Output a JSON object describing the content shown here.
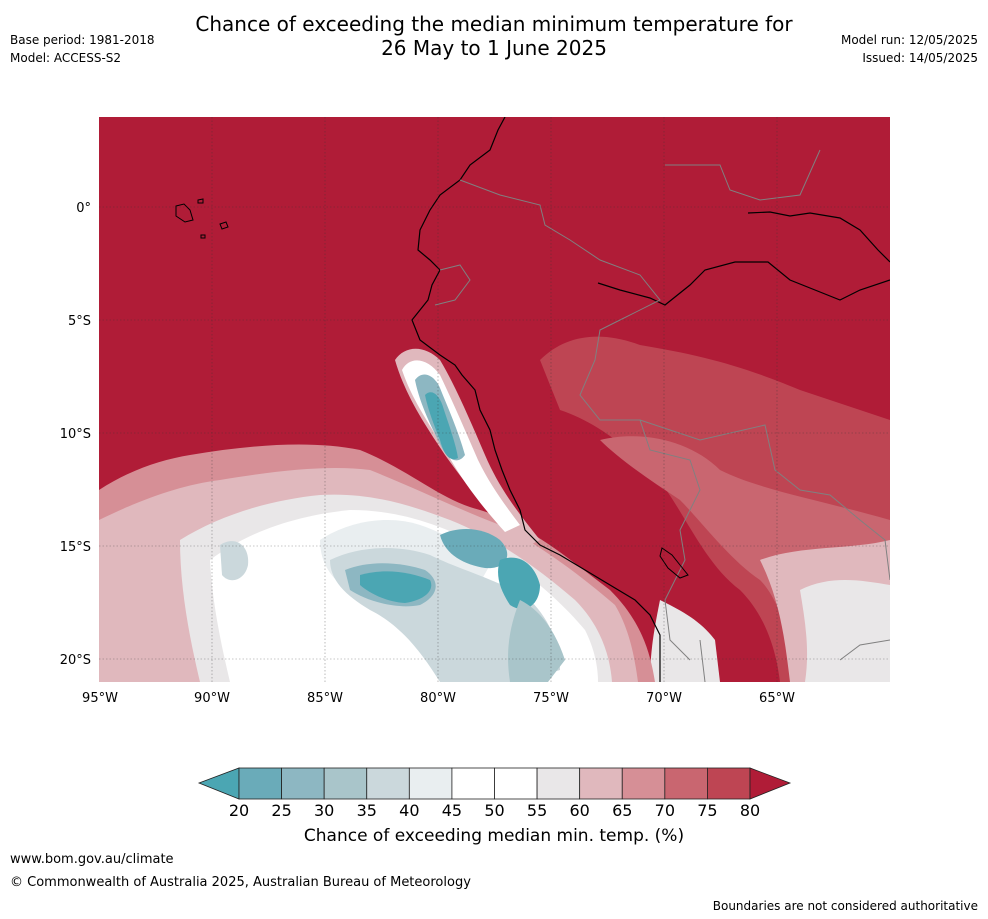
{
  "header": {
    "title_line1": "Chance of exceeding the median minimum temperature for",
    "title_line2": "26 May to 1 June 2025",
    "base_period": "Base period: 1981-2018",
    "model": "Model: ACCESS-S2",
    "model_run": "Model run: 12/05/2025",
    "issued": "Issued: 14/05/2025"
  },
  "map": {
    "latitude_labels": [
      "0°",
      "5°S",
      "10°S",
      "15°S",
      "20°S"
    ],
    "longitude_labels": [
      "95°W",
      "90°W",
      "85°W",
      "80°W",
      "75°W",
      "70°W",
      "65°W"
    ],
    "ocean_background_color": "#b01c37",
    "coast_color": "#000000",
    "border_color": "#808080"
  },
  "colorbar": {
    "title": "Chance of exceeding median min. temp. (%)",
    "ticks": [
      "20",
      "25",
      "30",
      "35",
      "40",
      "45",
      "50",
      "55",
      "60",
      "65",
      "70",
      "75",
      "80"
    ],
    "colors": [
      "#4ba6b3",
      "#6aabb9",
      "#8db7c2",
      "#a9c5ca",
      "#cbd8dc",
      "#e9eef0",
      "#ffffff",
      "#ffffff",
      "#e9e7e8",
      "#e0b8bd",
      "#d68f96",
      "#c96670",
      "#be4553",
      "#b01c37"
    ]
  },
  "footer": {
    "url": "www.bom.gov.au/climate",
    "copyright": "© Commonwealth of Australia 2025, Australian Bureau of Meteorology",
    "disclaimer": "Boundaries are not considered authoritative"
  }
}
